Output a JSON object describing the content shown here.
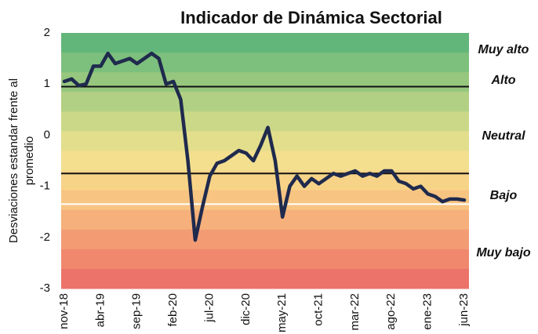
{
  "chart_data": {
    "type": "line",
    "title": "Indicador de Dinámica Sectorial",
    "y_label": [
      "Desviaciones estandar frente al",
      "promedio"
    ],
    "categories": [
      "nov-18",
      null,
      null,
      null,
      null,
      "abr-19",
      null,
      null,
      null,
      null,
      "sep-19",
      null,
      null,
      null,
      null,
      "feb-20",
      null,
      null,
      null,
      null,
      "jul-20",
      null,
      null,
      null,
      null,
      "dic-20",
      null,
      null,
      null,
      null,
      "may-21",
      null,
      null,
      null,
      null,
      "oct-21",
      null,
      null,
      null,
      null,
      "mar-22",
      null,
      null,
      null,
      null,
      "ago-22",
      null,
      null,
      null,
      null,
      "ene-23",
      null,
      null,
      null,
      null,
      "jun-23"
    ],
    "series": [
      {
        "name": "Indicador",
        "color": "#1f2a4d",
        "values": [
          1.05,
          1.1,
          0.97,
          1.0,
          1.35,
          1.35,
          1.6,
          1.4,
          1.45,
          1.5,
          1.4,
          1.5,
          1.6,
          1.5,
          1.0,
          1.05,
          0.7,
          -0.5,
          -2.05,
          -1.4,
          -0.8,
          -0.55,
          -0.5,
          -0.4,
          -0.3,
          -0.35,
          -0.5,
          -0.2,
          0.15,
          -0.5,
          -1.6,
          -1.0,
          -0.8,
          -1.0,
          -0.85,
          -0.95,
          -0.85,
          -0.75,
          -0.8,
          -0.75,
          -0.7,
          -0.8,
          -0.75,
          -0.8,
          -0.7,
          -0.7,
          -0.9,
          -0.95,
          -1.05,
          -1.0,
          -1.15,
          -1.2,
          -1.3,
          -1.25,
          -1.25,
          -1.27
        ]
      }
    ],
    "reference_lines": [
      {
        "value": 0.95,
        "color": "#111111"
      },
      {
        "value": -0.75,
        "color": "#111111"
      },
      {
        "value": -1.35,
        "color": "#ffffff"
      }
    ],
    "zones": [
      {
        "label": "Muy alto",
        "color": "#2e9e4a"
      },
      {
        "label": "Alto",
        "color": "#8cc152"
      },
      {
        "label": "Neutral",
        "color": "#000000"
      },
      {
        "label": "Bajo",
        "color": "#f2b27f"
      },
      {
        "label": "Muy bajo",
        "color": "#c8202a"
      }
    ],
    "ylim": [
      -3,
      2
    ],
    "yticks": [
      -3,
      -2,
      -1,
      0,
      1,
      2
    ]
  }
}
